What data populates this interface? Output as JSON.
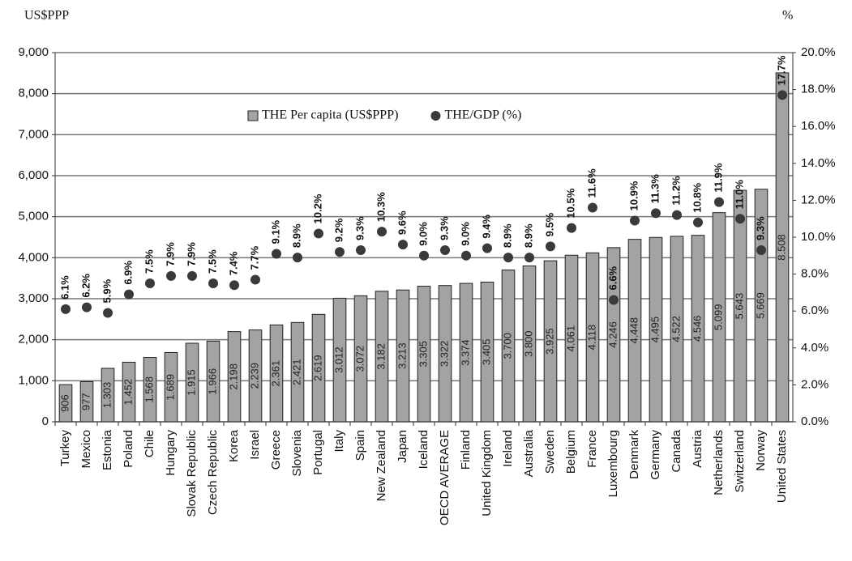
{
  "chart_data": {
    "type": "bar",
    "y_unit_label": "US$PPP",
    "y2_unit_label": "%",
    "categories": [
      "Turkey",
      "Mexico",
      "Estonia",
      "Poland",
      "Chile",
      "Hungary",
      "Slovak Republic",
      "Czech Republic",
      "Korea",
      "Israel",
      "Greece",
      "Slovenia",
      "Portugal",
      "Italy",
      "Spain",
      "New Zealand",
      "Japan",
      "Iceland",
      "OECD AVERAGE",
      "Finland",
      "United Kingdom",
      "Ireland",
      "Australia",
      "Sweden",
      "Belgium",
      "France",
      "Luxembourg",
      "Denmark",
      "Germany",
      "Canada",
      "Austria",
      "Netherlands",
      "Switzerland",
      "Norway",
      "United States"
    ],
    "series": [
      {
        "name": "THE Per capita (US$PPP)",
        "type": "bar",
        "color": "#a3a3a3",
        "values": [
          906,
          977,
          1303,
          1452,
          1568,
          1689,
          1915,
          1966,
          2198,
          2239,
          2361,
          2421,
          2619,
          3012,
          3072,
          3182,
          3213,
          3305,
          3322,
          3374,
          3405,
          3700,
          3800,
          3925,
          4061,
          4118,
          4246,
          4448,
          4495,
          4522,
          4546,
          5099,
          5643,
          5669,
          8508
        ],
        "value_labels": [
          "906",
          "977",
          "1.303",
          "1.452",
          "1.568",
          "1.689",
          "1.915",
          "1.966",
          "2.198",
          "2.239",
          "2.361",
          "2.421",
          "2.619",
          "3.012",
          "3.072",
          "3.182",
          "3.213",
          "3.305",
          "3.322",
          "3.374",
          "3.405",
          "3.700",
          "3.800",
          "3.925",
          "4.061",
          "4.118",
          "4.246",
          "4.448",
          "4.495",
          "4.522",
          "4.546",
          "5.099",
          "5.643",
          "5.669",
          "8.508"
        ]
      },
      {
        "name": "THE/GDP (%)",
        "type": "scatter",
        "axis": "y2",
        "color": "#3a3a3a",
        "values": [
          6.1,
          6.2,
          5.9,
          6.9,
          7.5,
          7.9,
          7.9,
          7.5,
          7.4,
          7.7,
          9.1,
          8.9,
          10.2,
          9.2,
          9.3,
          10.3,
          9.6,
          9.0,
          9.3,
          9.0,
          9.4,
          8.9,
          8.9,
          9.5,
          10.5,
          11.6,
          6.6,
          10.9,
          11.3,
          11.2,
          10.8,
          11.9,
          11.0,
          9.3,
          17.7
        ],
        "value_labels": [
          "6.1%",
          "6.2%",
          "5.9%",
          "6.9%",
          "7.5%",
          "7.9%",
          "7.9%",
          "7.5%",
          "7.4%",
          "7.7%",
          "9.1%",
          "8.9%",
          "10.2%",
          "9.2%",
          "9.3%",
          "10.3%",
          "9.6%",
          "9.0%",
          "9.3%",
          "9.0%",
          "9.4%",
          "8.9%",
          "8.9%",
          "9.5%",
          "10.5%",
          "11.6%",
          "6.6%",
          "10.9%",
          "11.3%",
          "11.2%",
          "10.8%",
          "11.9%",
          "11.0%",
          "9.3%",
          "17.7%"
        ]
      }
    ],
    "ylim": [
      0,
      9000
    ],
    "yticks": [
      0,
      {
        "value": 1000,
        "label": "1,000"
      },
      {
        "value": 2000,
        "label": "2,000"
      },
      {
        "value": 3000,
        "label": "3,000"
      },
      {
        "value": 4000,
        "label": "4,000"
      },
      {
        "value": 5000,
        "label": "5,000"
      },
      {
        "value": 6000,
        "label": "6,000"
      },
      {
        "value": 7000,
        "label": "7,000"
      },
      {
        "value": 8000,
        "label": "8,000"
      },
      {
        "value": 9000,
        "label": "9,000"
      }
    ],
    "y2lim": [
      0,
      20
    ],
    "y2ticks": [
      {
        "value": 0,
        "label": "0.0%"
      },
      {
        "value": 2,
        "label": "2.0%"
      },
      {
        "value": 4,
        "label": "4.0%"
      },
      {
        "value": 6,
        "label": "6.0%"
      },
      {
        "value": 8,
        "label": "8.0%"
      },
      {
        "value": 10,
        "label": "10.0%"
      },
      {
        "value": 12,
        "label": "12.0%"
      },
      {
        "value": 14,
        "label": "14.0%"
      },
      {
        "value": 16,
        "label": "16.0%"
      },
      {
        "value": 18,
        "label": "18.0%"
      },
      {
        "value": 20,
        "label": "20.0%"
      }
    ],
    "grid": true,
    "legend": "top"
  }
}
